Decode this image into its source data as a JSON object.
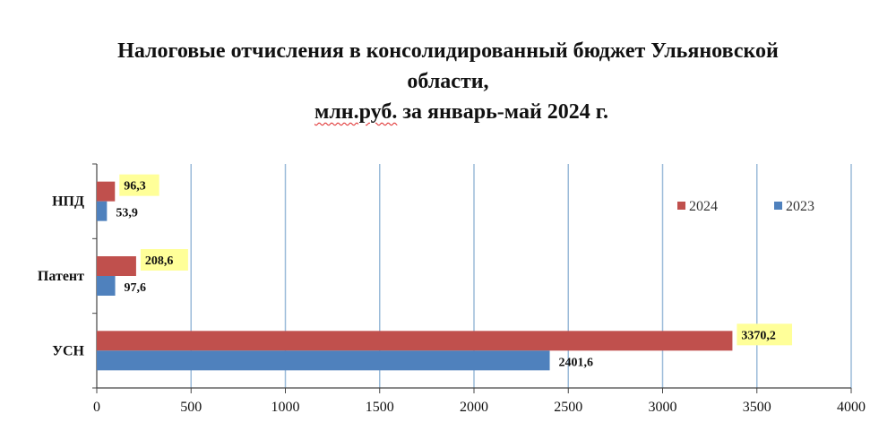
{
  "title": {
    "line1": "Налоговые отчисления в консолидированный бюджет Ульяновской",
    "line2": "области,",
    "line3_underlined": "млн.руб.",
    "line3_rest": " за январь-май 2024 г."
  },
  "colors": {
    "series_2024": "#c0504d",
    "series_2023": "#4f81bd",
    "grid": "#9bbbd9",
    "highlight": "#ffff99"
  },
  "chart_data": {
    "type": "bar",
    "orientation": "horizontal",
    "categories": [
      "НПД",
      "Патент",
      "УСН"
    ],
    "series": [
      {
        "name": "2024",
        "values": [
          96.3,
          208.6,
          3370.2
        ],
        "labels": [
          "96,3",
          "208,6",
          "3370,2"
        ],
        "highlighted_labels": true
      },
      {
        "name": "2023",
        "values": [
          53.9,
          97.6,
          2401.6
        ],
        "labels": [
          "53,9",
          "97,6",
          "2401,6"
        ],
        "highlighted_labels": false
      }
    ],
    "xlim": [
      0,
      4000
    ],
    "xticks": [
      0,
      500,
      1000,
      1500,
      2000,
      2500,
      3000,
      3500,
      4000
    ],
    "xtick_labels": [
      "0",
      "500",
      "1000",
      "1500",
      "2000",
      "2500",
      "3000",
      "3500",
      "4000"
    ],
    "grid": "vertical",
    "legend_position": "right"
  }
}
